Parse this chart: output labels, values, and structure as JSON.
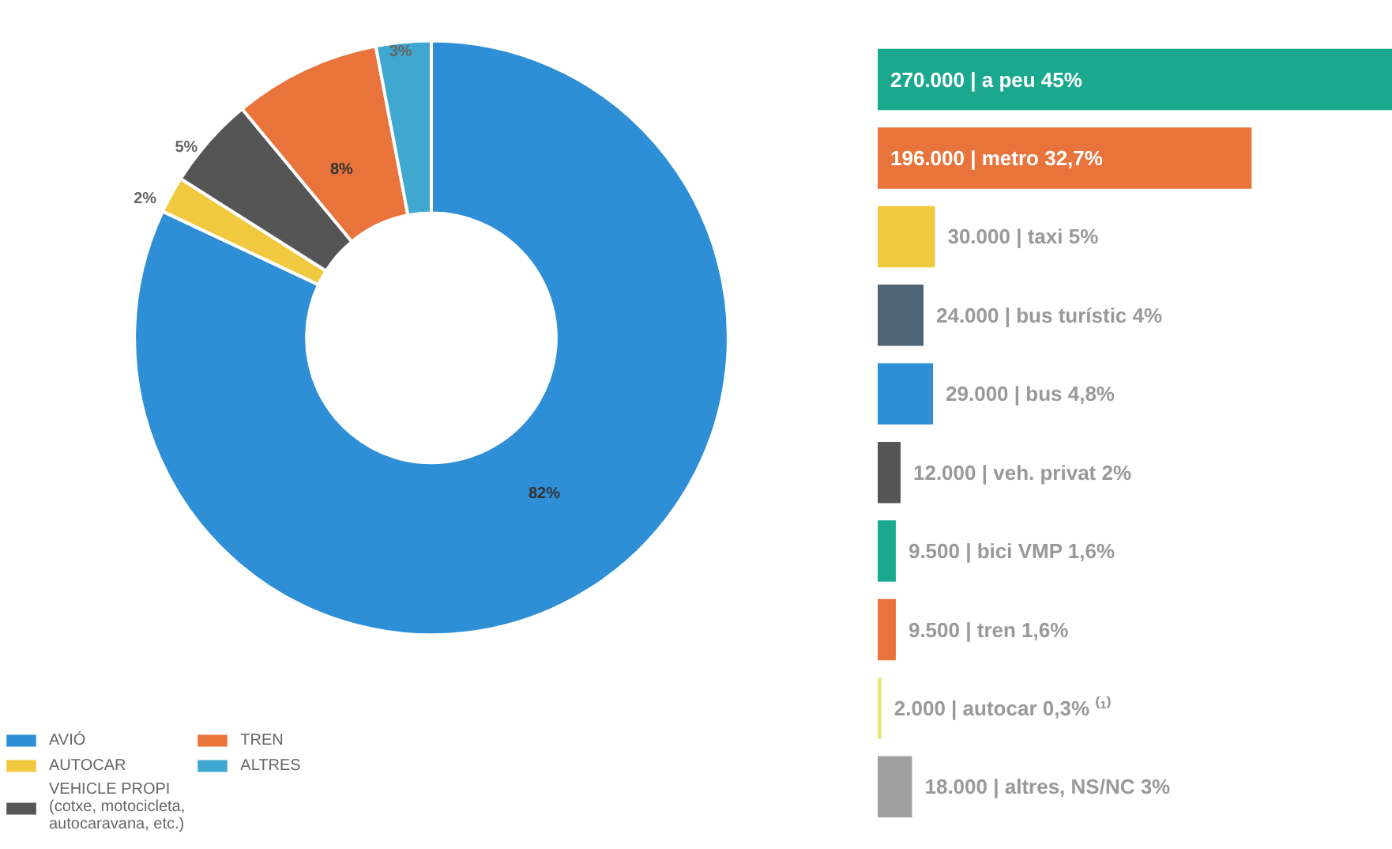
{
  "chart_data": [
    {
      "type": "donut",
      "categories": [
        "AVIÓ",
        "AUTOCAR",
        "VEHICLE PROPI\n(cotxe, motocicleta,\nautocaravana, etc.)",
        "TREN",
        "ALTRES"
      ],
      "values": [
        82,
        2,
        5,
        8,
        3
      ],
      "colors": [
        "#2e8fd6",
        "#f0c93e",
        "#555555",
        "#e8743b",
        "#3fa7d0"
      ],
      "value_labels": [
        "82%",
        "2%",
        "5%",
        "8%",
        "3%"
      ],
      "legend": "bottom"
    },
    {
      "type": "bar",
      "orientation": "horizontal",
      "categories": [
        null,
        null,
        null,
        null,
        null,
        null,
        null,
        null,
        null,
        null
      ],
      "values": [
        270000,
        196000,
        30000,
        24000,
        29000,
        12000,
        9500,
        9500,
        2000,
        18000
      ],
      "colors": [
        "#1aa88e",
        "#e8743b",
        "#f0c93e",
        "#4e6577",
        "#2e8fd6",
        "#555555",
        "#1aa88e",
        "#e8743b",
        "#e6e87a",
        "#a0a0a0"
      ],
      "value_labels": [
        "270.000 | a peu 45%",
        "196.000 | metro 32,7%",
        "30.000 | taxi 5%",
        "24.000 | bus turístic 4%",
        "29.000 | bus 4,8%",
        "12.000 | veh. privat 2%",
        "9.500 | bici VMP 1,6%",
        "9.500 | tren 1,6%",
        "2.000 | autocar 0,3% ⁽¹⁾",
        "18.000 | altres, NS/NC 3%"
      ],
      "xlim": [
        0,
        270000
      ],
      "tick_labels": false
    }
  ]
}
